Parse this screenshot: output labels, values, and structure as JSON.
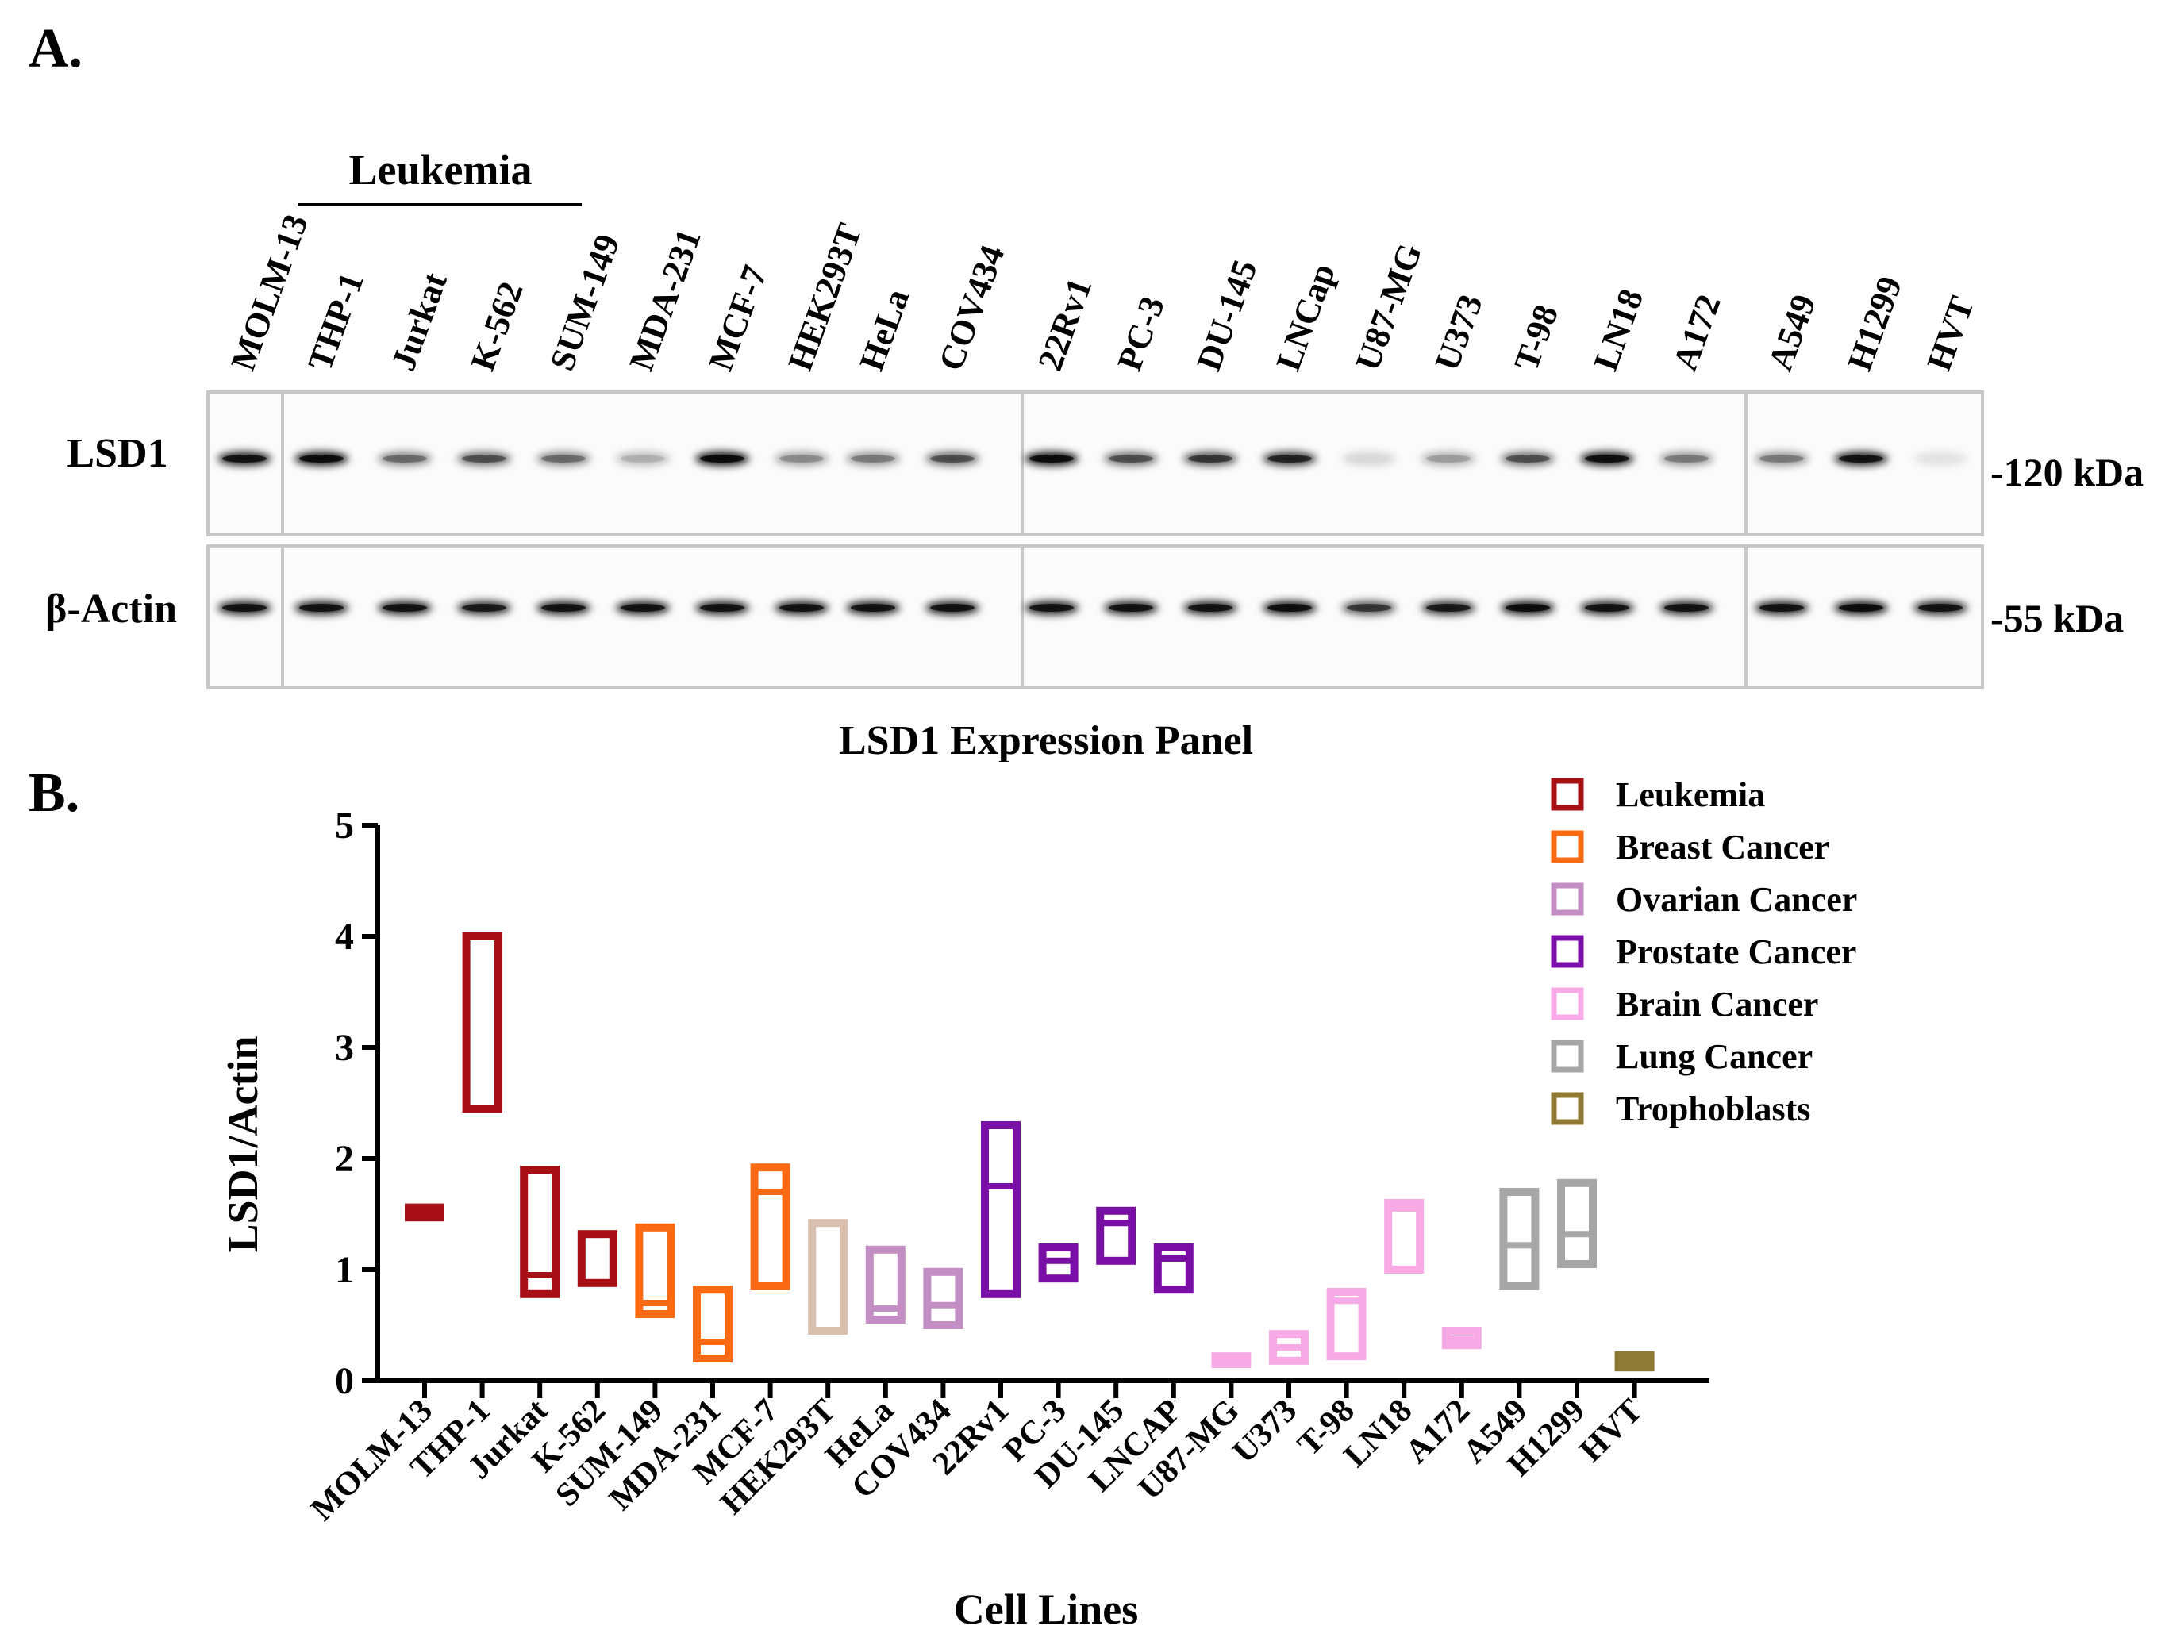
{
  "panel_a": {
    "label": "A.",
    "group_label": "Leukemia",
    "lanes": [
      "MOLM-13",
      "THP-1",
      "Jurkat",
      "K-562",
      "SUM-149",
      "MDA-231",
      "MCF-7",
      "HEK293T",
      "HeLa",
      "COV434",
      "22Rv1",
      "PC-3",
      "DU-145",
      "LNCap",
      "U87-MG",
      "U373",
      "T-98",
      "LN18",
      "A172",
      "A549",
      "H1299",
      "HVT"
    ],
    "rows": [
      {
        "name": "LSD1",
        "marker": "-120 kDa",
        "intensity": [
          0.85,
          0.9,
          0.45,
          0.55,
          0.45,
          0.25,
          0.92,
          0.35,
          0.4,
          0.55,
          0.9,
          0.55,
          0.65,
          0.75,
          0.15,
          0.3,
          0.55,
          0.88,
          0.4,
          0.4,
          0.85,
          0.1
        ]
      },
      {
        "name": "β-Actin",
        "marker": "-55 kDa",
        "intensity": [
          0.85,
          0.85,
          0.85,
          0.8,
          0.85,
          0.85,
          0.85,
          0.85,
          0.85,
          0.85,
          0.85,
          0.85,
          0.85,
          0.88,
          0.65,
          0.8,
          0.9,
          0.85,
          0.85,
          0.85,
          0.9,
          0.85
        ]
      }
    ],
    "caption": "LSD1 Expression Panel"
  },
  "panel_b": {
    "label": "B."
  },
  "legend": [
    {
      "name": "Leukemia",
      "color": "#a50f15"
    },
    {
      "name": "Breast Cancer",
      "color": "#fa6a12"
    },
    {
      "name": "Ovarian Cancer",
      "color": "#c38ec3"
    },
    {
      "name": "Prostate Cancer",
      "color": "#7a0fa5"
    },
    {
      "name": "Brain Cancer",
      "color": "#f7aae6"
    },
    {
      "name": "Lung Cancer",
      "color": "#a6a6a6"
    },
    {
      "name": "Trophoblasts",
      "color": "#8f7a35"
    }
  ],
  "chart_data": {
    "type": "box",
    "xlabel": "Cell Lines",
    "ylabel": "LSD1/Actin",
    "ylim": [
      0,
      5
    ],
    "yticks": [
      0,
      1,
      2,
      3,
      4,
      5
    ],
    "categories": [
      "MOLM-13",
      "THP-1",
      "Jurkat",
      "K-562",
      "SUM-149",
      "MDA-231",
      "MCF-7",
      "HEK293T",
      "HeLa",
      "COV434",
      "22Rv1",
      "PC-3",
      "DU-145",
      "LNCAP",
      "U87-MG",
      "U373",
      "T-98",
      "LN18",
      "A172",
      "A549",
      "H1299",
      "HVT"
    ],
    "boxes": [
      {
        "min": 1.47,
        "max": 1.56,
        "median": 1.52,
        "group": "Leukemia"
      },
      {
        "min": 2.45,
        "max": 4.0,
        "median": 2.45,
        "group": "Leukemia"
      },
      {
        "min": 0.78,
        "max": 1.9,
        "median": 0.95,
        "group": "Leukemia"
      },
      {
        "min": 0.88,
        "max": 1.32,
        "median": 0.88,
        "group": "Leukemia"
      },
      {
        "min": 0.6,
        "max": 1.38,
        "median": 0.7,
        "group": "Breast Cancer"
      },
      {
        "min": 0.2,
        "max": 0.82,
        "median": 0.35,
        "group": "Breast Cancer"
      },
      {
        "min": 0.85,
        "max": 1.92,
        "median": 1.7,
        "group": "Breast Cancer"
      },
      {
        "min": 0.45,
        "max": 1.42,
        "median": 0.45,
        "group": "HEK293T"
      },
      {
        "min": 0.55,
        "max": 1.18,
        "median": 0.65,
        "group": "Ovarian Cancer"
      },
      {
        "min": 0.5,
        "max": 0.98,
        "median": 0.68,
        "group": "Ovarian Cancer"
      },
      {
        "min": 0.78,
        "max": 2.3,
        "median": 1.75,
        "group": "Prostate Cancer"
      },
      {
        "min": 0.92,
        "max": 1.2,
        "median": 1.08,
        "group": "Prostate Cancer"
      },
      {
        "min": 1.08,
        "max": 1.53,
        "median": 1.42,
        "group": "Prostate Cancer"
      },
      {
        "min": 0.82,
        "max": 1.2,
        "median": 1.1,
        "group": "Prostate Cancer"
      },
      {
        "min": 0.15,
        "max": 0.22,
        "median": 0.18,
        "group": "Brain Cancer"
      },
      {
        "min": 0.18,
        "max": 0.42,
        "median": 0.3,
        "group": "Brain Cancer"
      },
      {
        "min": 0.22,
        "max": 0.8,
        "median": 0.72,
        "group": "Brain Cancer"
      },
      {
        "min": 1.0,
        "max": 1.6,
        "median": 1.55,
        "group": "Brain Cancer"
      },
      {
        "min": 0.32,
        "max": 0.45,
        "median": 0.38,
        "group": "Brain Cancer"
      },
      {
        "min": 0.85,
        "max": 1.7,
        "median": 1.22,
        "group": "Lung Cancer"
      },
      {
        "min": 1.05,
        "max": 1.78,
        "median": 1.32,
        "group": "Lung Cancer"
      },
      {
        "min": 0.12,
        "max": 0.23,
        "median": 0.18,
        "group": "Trophoblasts"
      }
    ]
  }
}
